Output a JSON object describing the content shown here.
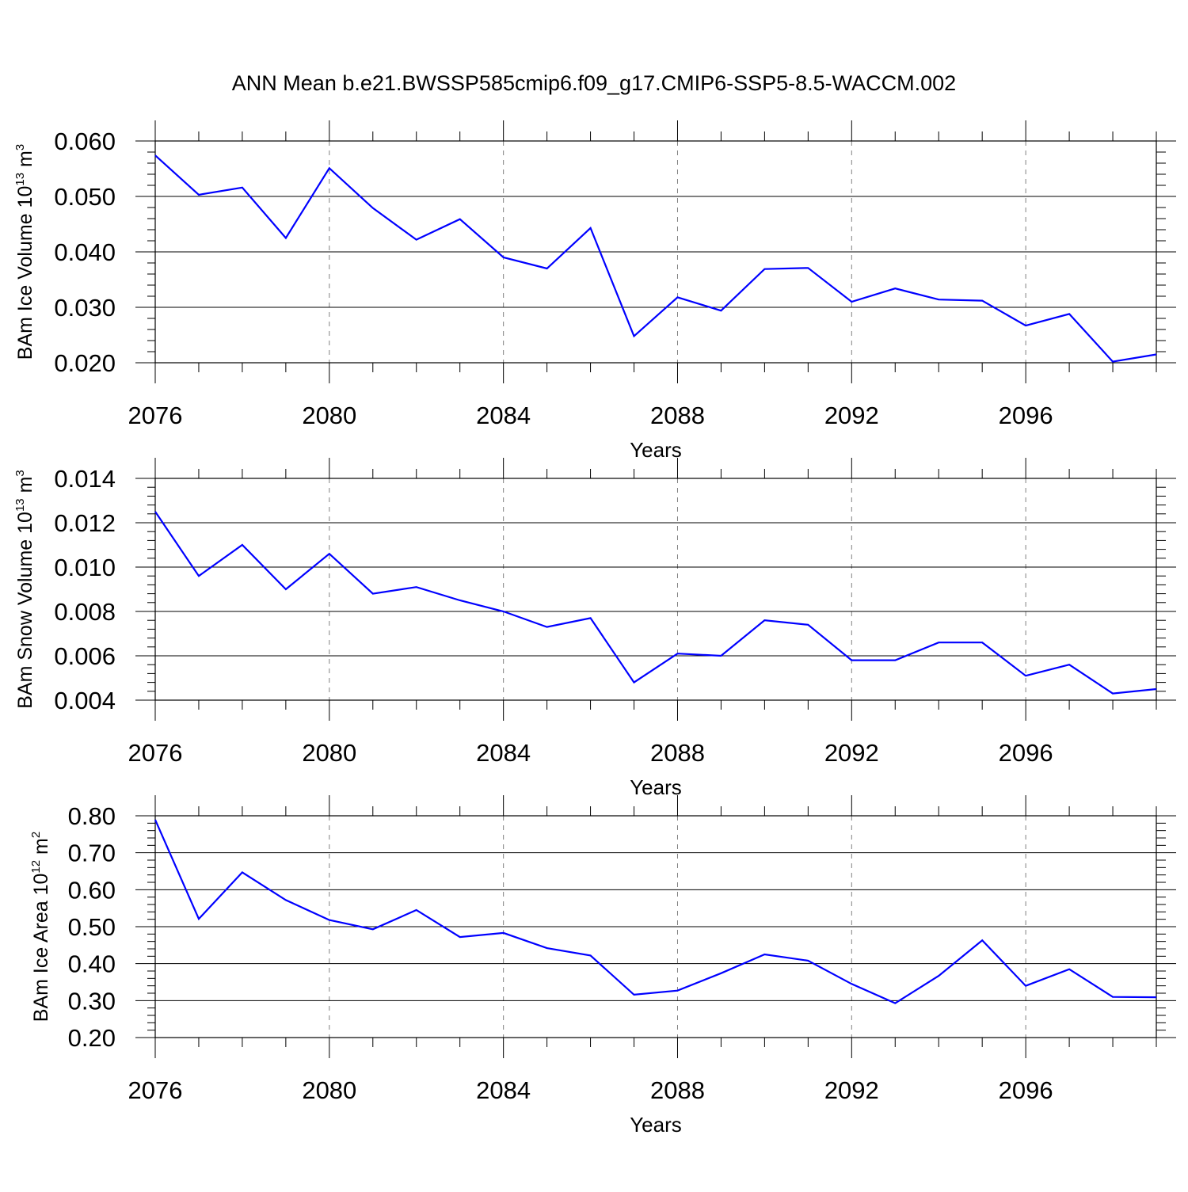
{
  "title": "ANN Mean b.e21.BWSSP585cmip6.f09_g17.CMIP6-SSP5-8.5-WACCM.002",
  "colors": {
    "line": "#0000ff",
    "axis": "#000000",
    "grid": "#808080"
  },
  "chart_data": [
    {
      "type": "line",
      "ylabel": {
        "text": "BAm Ice Volume 10",
        "sup": "13",
        "unit": " m",
        "unit_sup": "3"
      },
      "xlabel": "Years",
      "xlim": [
        2076,
        2099
      ],
      "ylim": [
        0.02,
        0.06
      ],
      "yticks": [
        "0.020",
        "0.030",
        "0.040",
        "0.050",
        "0.060"
      ],
      "ytick_values": [
        0.02,
        0.03,
        0.04,
        0.05,
        0.06
      ],
      "xticks": [
        "2076",
        "2080",
        "2084",
        "2088",
        "2092",
        "2096"
      ],
      "xtick_values": [
        2076,
        2080,
        2084,
        2088,
        2092,
        2096
      ],
      "x": [
        2076,
        2077,
        2078,
        2079,
        2080,
        2081,
        2082,
        2083,
        2084,
        2085,
        2086,
        2087,
        2088,
        2089,
        2090,
        2091,
        2092,
        2093,
        2094,
        2095,
        2096,
        2097,
        2098,
        2099
      ],
      "series": [
        {
          "values": [
            0.0574,
            0.0503,
            0.0516,
            0.0425,
            0.0551,
            0.0479,
            0.0422,
            0.0459,
            0.039,
            0.037,
            0.0443,
            0.0248,
            0.0318,
            0.0294,
            0.0369,
            0.0371,
            0.031,
            0.0334,
            0.0314,
            0.0312,
            0.0267,
            0.0288,
            0.0202,
            0.0215
          ]
        }
      ]
    },
    {
      "type": "line",
      "ylabel": {
        "text": "BAm Snow Volume 10",
        "sup": "13",
        "unit": " m",
        "unit_sup": "3"
      },
      "xlabel": "Years",
      "xlim": [
        2076,
        2099
      ],
      "ylim": [
        0.004,
        0.014
      ],
      "yticks": [
        "0.004",
        "0.006",
        "0.008",
        "0.010",
        "0.012",
        "0.014"
      ],
      "ytick_values": [
        0.004,
        0.006,
        0.008,
        0.01,
        0.012,
        0.014
      ],
      "xticks": [
        "2076",
        "2080",
        "2084",
        "2088",
        "2092",
        "2096"
      ],
      "xtick_values": [
        2076,
        2080,
        2084,
        2088,
        2092,
        2096
      ],
      "x": [
        2076,
        2077,
        2078,
        2079,
        2080,
        2081,
        2082,
        2083,
        2084,
        2085,
        2086,
        2087,
        2088,
        2089,
        2090,
        2091,
        2092,
        2093,
        2094,
        2095,
        2096,
        2097,
        2098,
        2099
      ],
      "series": [
        {
          "values": [
            0.0125,
            0.0096,
            0.011,
            0.009,
            0.0106,
            0.0088,
            0.0091,
            0.0085,
            0.008,
            0.0073,
            0.0077,
            0.0048,
            0.0061,
            0.006,
            0.0076,
            0.0074,
            0.0058,
            0.0058,
            0.0066,
            0.0066,
            0.0051,
            0.0056,
            0.0043,
            0.0045
          ]
        }
      ]
    },
    {
      "type": "line",
      "ylabel": {
        "text": "BAm Ice Area 10",
        "sup": "12",
        "unit": " m",
        "unit_sup": "2"
      },
      "xlabel": "Years",
      "xlim": [
        2076,
        2099
      ],
      "ylim": [
        0.2,
        0.8
      ],
      "yticks": [
        "0.20",
        "0.30",
        "0.40",
        "0.50",
        "0.60",
        "0.70",
        "0.80"
      ],
      "ytick_values": [
        0.2,
        0.3,
        0.4,
        0.5,
        0.6,
        0.7,
        0.8
      ],
      "xticks": [
        "2076",
        "2080",
        "2084",
        "2088",
        "2092",
        "2096"
      ],
      "xtick_values": [
        2076,
        2080,
        2084,
        2088,
        2092,
        2096
      ],
      "x": [
        2076,
        2077,
        2078,
        2079,
        2080,
        2081,
        2082,
        2083,
        2084,
        2085,
        2086,
        2087,
        2088,
        2089,
        2090,
        2091,
        2092,
        2093,
        2094,
        2095,
        2096,
        2097,
        2098,
        2099
      ],
      "series": [
        {
          "values": [
            0.789,
            0.521,
            0.647,
            0.572,
            0.518,
            0.493,
            0.545,
            0.472,
            0.483,
            0.442,
            0.422,
            0.316,
            0.327,
            0.374,
            0.425,
            0.408,
            0.345,
            0.293,
            0.367,
            0.463,
            0.34,
            0.385,
            0.31,
            0.309
          ]
        }
      ]
    }
  ]
}
